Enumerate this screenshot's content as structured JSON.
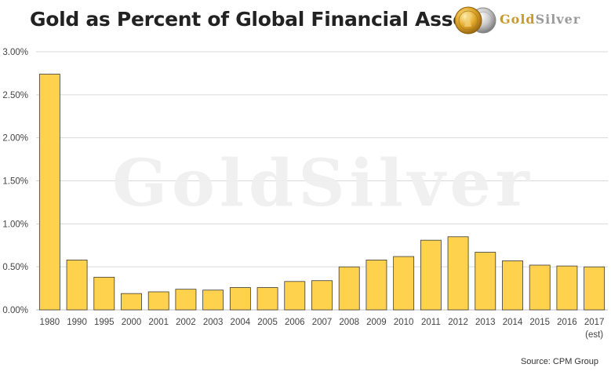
{
  "title": "Gold as Percent of Global Financial Assets",
  "logo": {
    "part1": "Gold",
    "part2": "Silver",
    "watermark": "GoldSilver"
  },
  "source": "Source: CPM Group",
  "colors": {
    "bar_fill": "#ffd24d",
    "bar_stroke": "#3a3a3a",
    "grid": "#d9d9d9",
    "logo_gold": "#c79a2d",
    "logo_silver": "#9a9a9a"
  },
  "chart_data": {
    "type": "bar",
    "title": "Gold as Percent of Global Financial Assets",
    "categories": [
      "1980",
      "1990",
      "1995",
      "2000",
      "2001",
      "2002",
      "2003",
      "2004",
      "2005",
      "2006",
      "2007",
      "2008",
      "2009",
      "2010",
      "2011",
      "2012",
      "2013",
      "2014",
      "2015",
      "2016",
      "2017"
    ],
    "category_sublabels": {
      "2017": "(est)"
    },
    "values": [
      2.74,
      0.58,
      0.38,
      0.19,
      0.21,
      0.24,
      0.23,
      0.26,
      0.26,
      0.33,
      0.34,
      0.5,
      0.58,
      0.62,
      0.81,
      0.85,
      0.67,
      0.57,
      0.52,
      0.51,
      0.5
    ],
    "value_unit": "%",
    "ylim": [
      0,
      3
    ],
    "yticks": [
      "0.00%",
      "0.50%",
      "1.00%",
      "1.50%",
      "2.00%",
      "2.50%",
      "3.00%"
    ],
    "ytick_values": [
      0,
      0.5,
      1,
      1.5,
      2,
      2.5,
      3
    ],
    "grid": true,
    "legend": "none",
    "xlabel": "",
    "ylabel": ""
  }
}
